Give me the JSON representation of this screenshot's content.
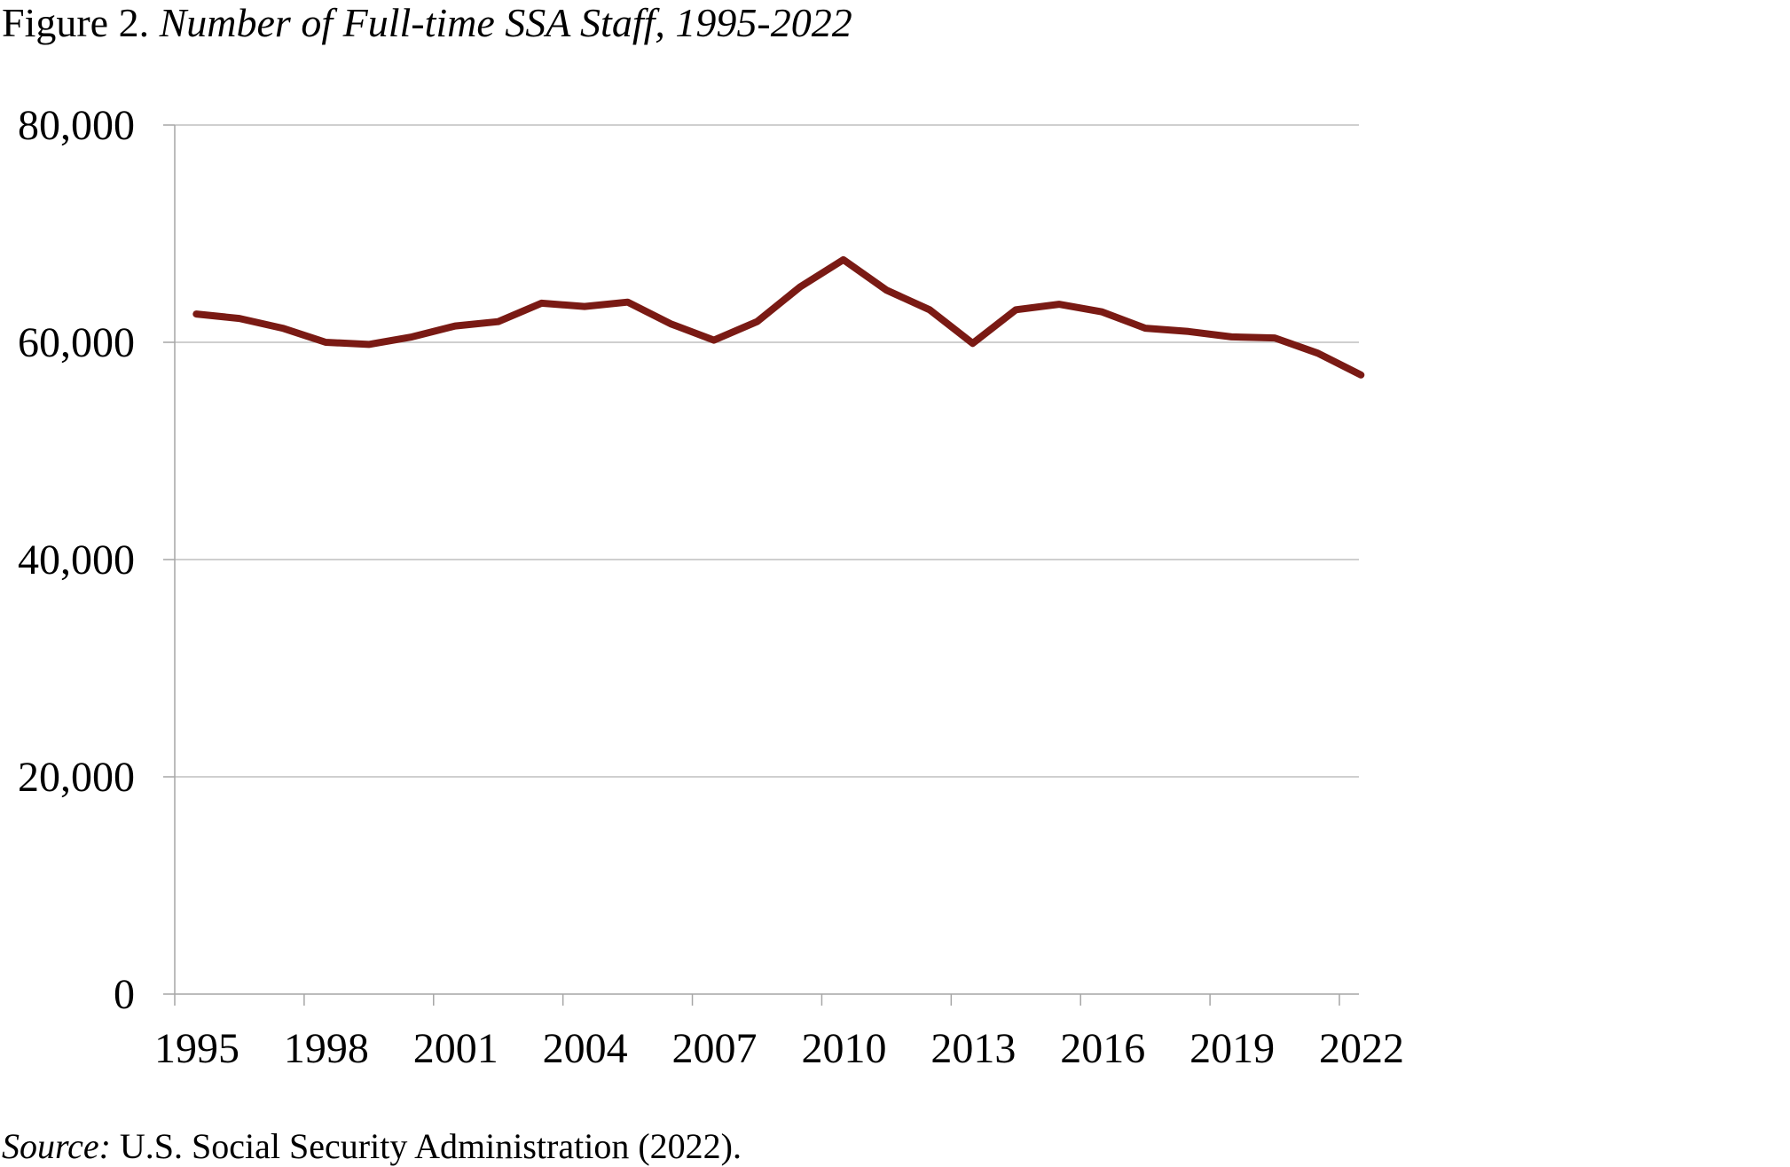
{
  "figure": {
    "label": "Figure 2.",
    "title": "Number of Full-time SSA Staff, 1995-2022"
  },
  "source": {
    "label": "Source:",
    "text": "U.S. Social Security Administration (2022)."
  },
  "colors": {
    "line": "#7a1a14",
    "grid": "#bfbfbf",
    "axis": "#a6a6a6"
  },
  "chart_data": {
    "type": "line",
    "title": "Number of Full-time SSA Staff, 1995-2022",
    "xlabel": "",
    "ylabel": "",
    "xlim": [
      1995,
      2022
    ],
    "ylim": [
      0,
      80000
    ],
    "grid": true,
    "legend": "none",
    "x_tick_labels": [
      "1995",
      "1998",
      "2001",
      "2004",
      "2007",
      "2010",
      "2013",
      "2016",
      "2019",
      "2022"
    ],
    "y_tick_labels": [
      "0",
      "20,000",
      "40,000",
      "60,000",
      "80,000"
    ],
    "series": [
      {
        "x": [
          1995,
          1996,
          1997,
          1998,
          1999,
          2000,
          2001,
          2002,
          2003,
          2004,
          2005,
          2006,
          2007,
          2008,
          2009,
          2010,
          2011,
          2012,
          2013,
          2014,
          2015,
          2016,
          2017,
          2018,
          2019,
          2020,
          2021,
          2022
        ],
        "y": [
          62600,
          62200,
          61300,
          60000,
          59800,
          60500,
          61500,
          61900,
          63600,
          63300,
          63700,
          61700,
          60200,
          61900,
          65100,
          67600,
          64800,
          63000,
          59900,
          63000,
          63500,
          62800,
          61300,
          61000,
          60500,
          60400,
          59000,
          57000
        ]
      }
    ]
  }
}
